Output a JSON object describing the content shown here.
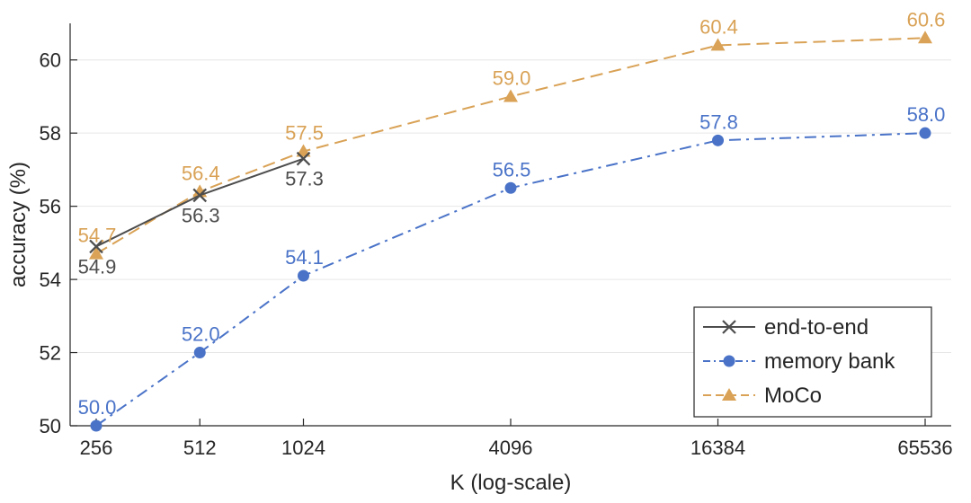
{
  "chart_data": {
    "type": "line",
    "xlabel": "K (log-scale)",
    "ylabel": "accuracy (%)",
    "x_scale": "log2",
    "categories": [
      "256",
      "512",
      "1024",
      "4096",
      "16384",
      "65536"
    ],
    "x": [
      256,
      512,
      1024,
      4096,
      16384,
      65536
    ],
    "ylim": [
      50,
      61
    ],
    "yticks": [
      50,
      52,
      54,
      56,
      58,
      60
    ],
    "grid": "horizontal",
    "legend_position": "bottom-right",
    "series": [
      {
        "name": "end-to-end",
        "color": "#4d4d4d",
        "marker": "x",
        "line_style": "solid",
        "x": [
          256,
          512,
          1024
        ],
        "values": [
          54.9,
          56.3,
          57.3
        ],
        "labels": [
          "54.9",
          "56.3",
          "57.3"
        ],
        "label_position": "below"
      },
      {
        "name": "memory bank",
        "color": "#4a73c8",
        "marker": "circle",
        "line_style": "dashdot",
        "x": [
          256,
          512,
          1024,
          4096,
          16384,
          65536
        ],
        "values": [
          50.0,
          52.0,
          54.1,
          56.5,
          57.8,
          58.0
        ],
        "labels": [
          "50.0",
          "52.0",
          "54.1",
          "56.5",
          "57.8",
          "58.0"
        ],
        "label_position": "above"
      },
      {
        "name": "MoCo",
        "color": "#d9a256",
        "marker": "triangle",
        "line_style": "dashed",
        "x": [
          256,
          512,
          1024,
          4096,
          16384,
          65536
        ],
        "values": [
          54.7,
          56.4,
          57.5,
          59.0,
          60.4,
          60.6
        ],
        "labels": [
          "54.7",
          "56.4",
          "57.5",
          "59.0",
          "60.4",
          "60.6"
        ],
        "label_position": "above"
      }
    ]
  }
}
